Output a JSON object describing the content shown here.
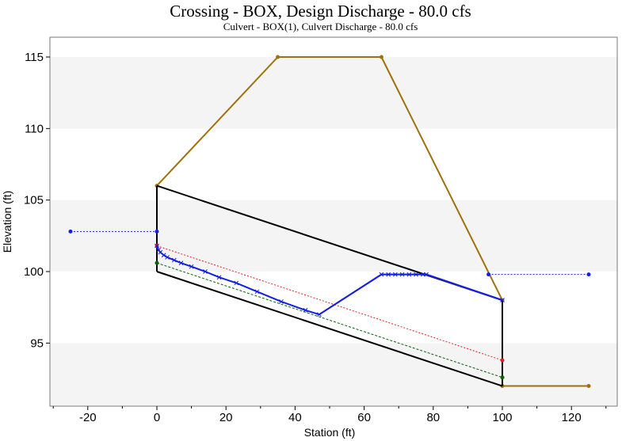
{
  "chart_data": {
    "type": "line",
    "title": "Crossing - BOX, Design Discharge - 80.0 cfs",
    "subtitle": "Culvert - BOX(1), Culvert Discharge - 80.0 cfs",
    "xlabel": "Station (ft)",
    "ylabel": "Elevation (ft)",
    "xlim": [
      -30,
      130
    ],
    "ylim": [
      90.5,
      116.5
    ],
    "xticks": [
      -20,
      0,
      20,
      40,
      60,
      80,
      100,
      120
    ],
    "yticks": [
      95,
      100,
      105,
      110,
      115
    ],
    "grid": "horizontal bands",
    "legend": "none",
    "series": [
      {
        "key": "road",
        "color": "#a0700a",
        "width": 2,
        "dash": "",
        "marker": "dot",
        "x": [
          0,
          35,
          65,
          100,
          100,
          125
        ],
        "y": [
          106,
          115,
          115,
          98,
          92,
          92
        ]
      },
      {
        "key": "culvert_top",
        "color": "#000000",
        "width": 2,
        "dash": "",
        "marker": "none",
        "x": [
          0,
          100
        ],
        "y": [
          106,
          98
        ]
      },
      {
        "key": "culvert_bottom",
        "color": "#000000",
        "width": 2,
        "dash": "",
        "marker": "none",
        "x": [
          0,
          100
        ],
        "y": [
          100,
          92
        ]
      },
      {
        "key": "culvert_inlet",
        "color": "#000000",
        "width": 2,
        "dash": "",
        "marker": "none",
        "x": [
          0,
          0
        ],
        "y": [
          100,
          106
        ]
      },
      {
        "key": "culvert_outlet",
        "color": "#000000",
        "width": 2,
        "dash": "",
        "marker": "none",
        "x": [
          100,
          100
        ],
        "y": [
          92,
          98
        ]
      },
      {
        "key": "critical_depth",
        "color": "#e02020",
        "width": 1,
        "dash": "2,2",
        "marker": "end",
        "x": [
          0,
          100
        ],
        "y": [
          101.8,
          93.8
        ]
      },
      {
        "key": "normal_depth",
        "color": "#006400",
        "width": 1,
        "dash": "3,2",
        "marker": "end",
        "x": [
          0,
          100
        ],
        "y": [
          100.6,
          92.6
        ]
      },
      {
        "key": "hgl_purple",
        "color": "#a040c0",
        "width": 2,
        "dash": "",
        "marker": "none",
        "x": [
          47,
          65,
          78,
          100
        ],
        "y": [
          97.0,
          99.8,
          99.8,
          98.0
        ]
      },
      {
        "key": "water_surface",
        "color": "#1020e0",
        "width": 2,
        "dash": "",
        "marker": "x",
        "x": [
          0,
          0.5,
          1,
          2,
          3,
          5,
          7,
          10,
          14,
          18,
          23,
          29,
          36,
          43,
          47,
          65,
          67,
          69,
          71,
          73,
          75,
          77,
          78,
          100
        ],
        "y": [
          101.8,
          101.5,
          101.35,
          101.15,
          101.0,
          100.8,
          100.6,
          100.35,
          100.0,
          99.6,
          99.2,
          98.6,
          97.9,
          97.3,
          97.0,
          99.8,
          99.8,
          99.8,
          99.8,
          99.8,
          99.8,
          99.8,
          99.8,
          98.0
        ]
      },
      {
        "key": "headwater",
        "color": "#1020e0",
        "width": 1,
        "dash": "2,2",
        "marker": "end",
        "x": [
          -25,
          0
        ],
        "y": [
          102.8,
          102.8
        ]
      },
      {
        "key": "tailwater",
        "color": "#1020e0",
        "width": 1,
        "dash": "2,2",
        "marker": "end",
        "x": [
          96,
          125
        ],
        "y": [
          99.8,
          99.8
        ]
      }
    ]
  }
}
